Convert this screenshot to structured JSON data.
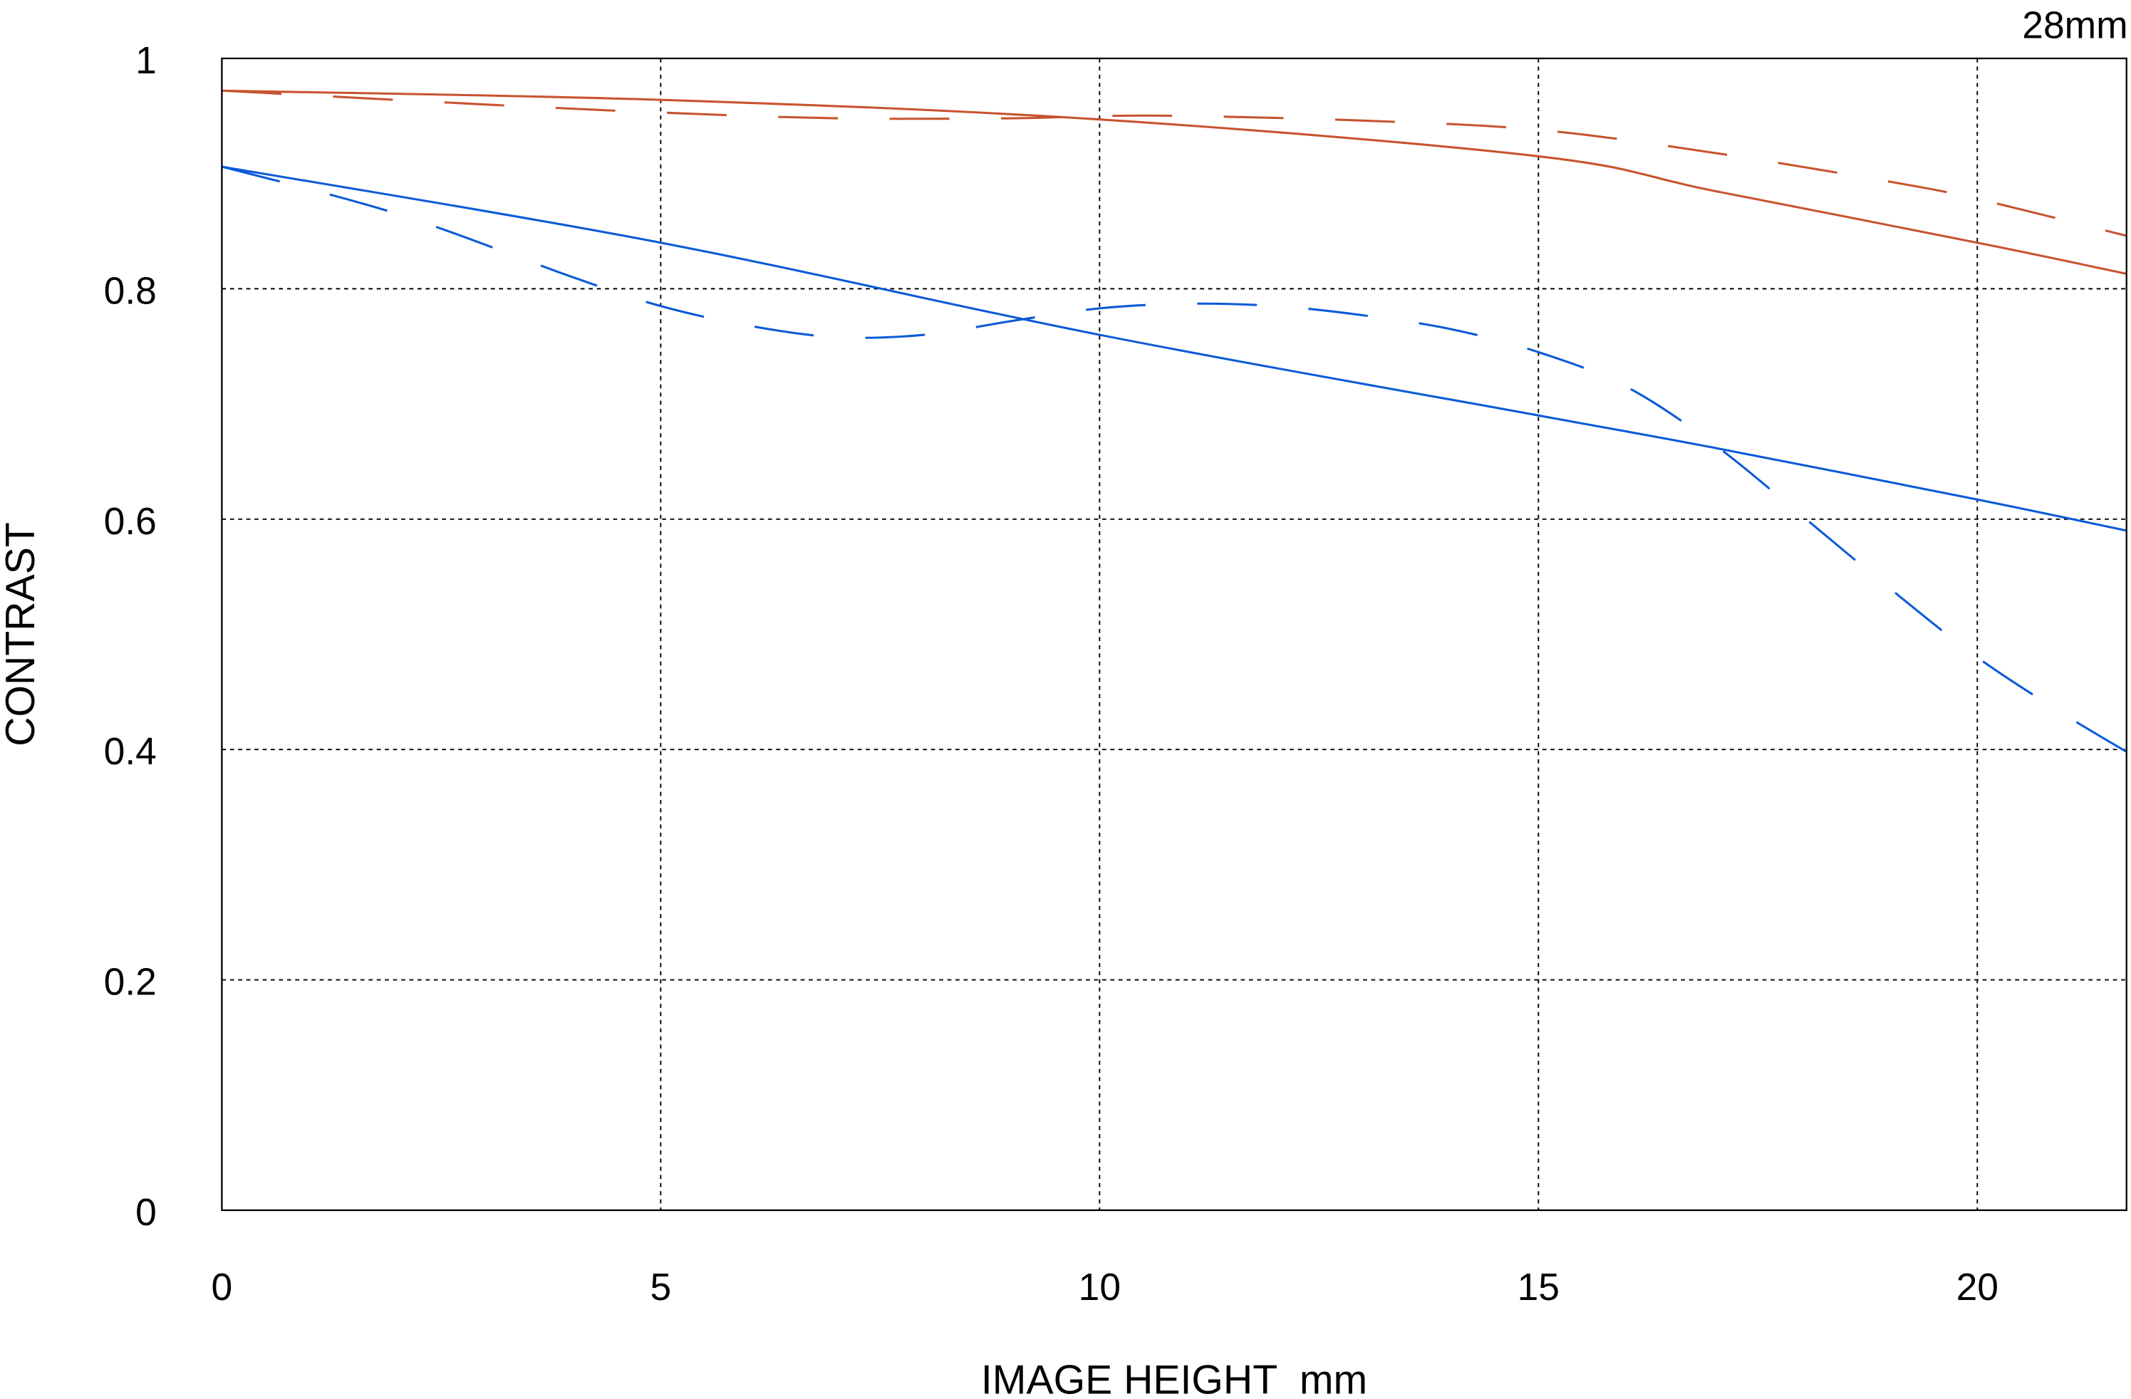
{
  "chart_data": {
    "type": "line",
    "title": "28mm",
    "xlabel": "IMAGE HEIGHT  mm",
    "ylabel": "CONTRAST",
    "xlim": [
      0,
      21.7
    ],
    "ylim": [
      0,
      1
    ],
    "xticks": [
      "0",
      "5",
      "10",
      "15",
      "20"
    ],
    "xtick_values": [
      0,
      5,
      10,
      15,
      20
    ],
    "yticks": [
      "0",
      "0.2",
      "0.4",
      "0.6",
      "0.8",
      "1"
    ],
    "ytick_values": [
      0,
      0.2,
      0.4,
      0.6,
      0.8,
      1
    ],
    "grid": true,
    "series": [
      {
        "color": "#c8532e",
        "style": "solid",
        "x": [
          0,
          5,
          10,
          15,
          17,
          20,
          21.7
        ],
        "y": [
          0.972,
          0.964,
          0.947,
          0.915,
          0.885,
          0.84,
          0.813
        ]
      },
      {
        "color": "#c8532e",
        "style": "dashed",
        "x": [
          0,
          3,
          5,
          7,
          9,
          10,
          11,
          13,
          15,
          17,
          19,
          20,
          21.7
        ],
        "y": [
          0.972,
          0.96,
          0.953,
          0.948,
          0.948,
          0.95,
          0.95,
          0.946,
          0.938,
          0.918,
          0.893,
          0.878,
          0.846
        ]
      },
      {
        "color": "#0a5ad8",
        "style": "solid",
        "x": [
          0,
          5,
          10,
          15,
          17,
          20,
          21.7
        ],
        "y": [
          0.906,
          0.84,
          0.76,
          0.69,
          0.662,
          0.617,
          0.59
        ]
      },
      {
        "color": "#0a5ad8",
        "style": "dashed",
        "x": [
          0,
          2,
          4,
          5,
          6,
          7,
          8,
          9,
          10,
          11,
          12,
          13,
          14,
          15,
          16,
          17,
          18,
          19,
          20,
          21,
          21.7
        ],
        "y": [
          0.906,
          0.865,
          0.81,
          0.785,
          0.768,
          0.758,
          0.76,
          0.772,
          0.783,
          0.787,
          0.785,
          0.777,
          0.765,
          0.745,
          0.715,
          0.665,
          0.603,
          0.54,
          0.48,
          0.43,
          0.398
        ]
      }
    ]
  }
}
